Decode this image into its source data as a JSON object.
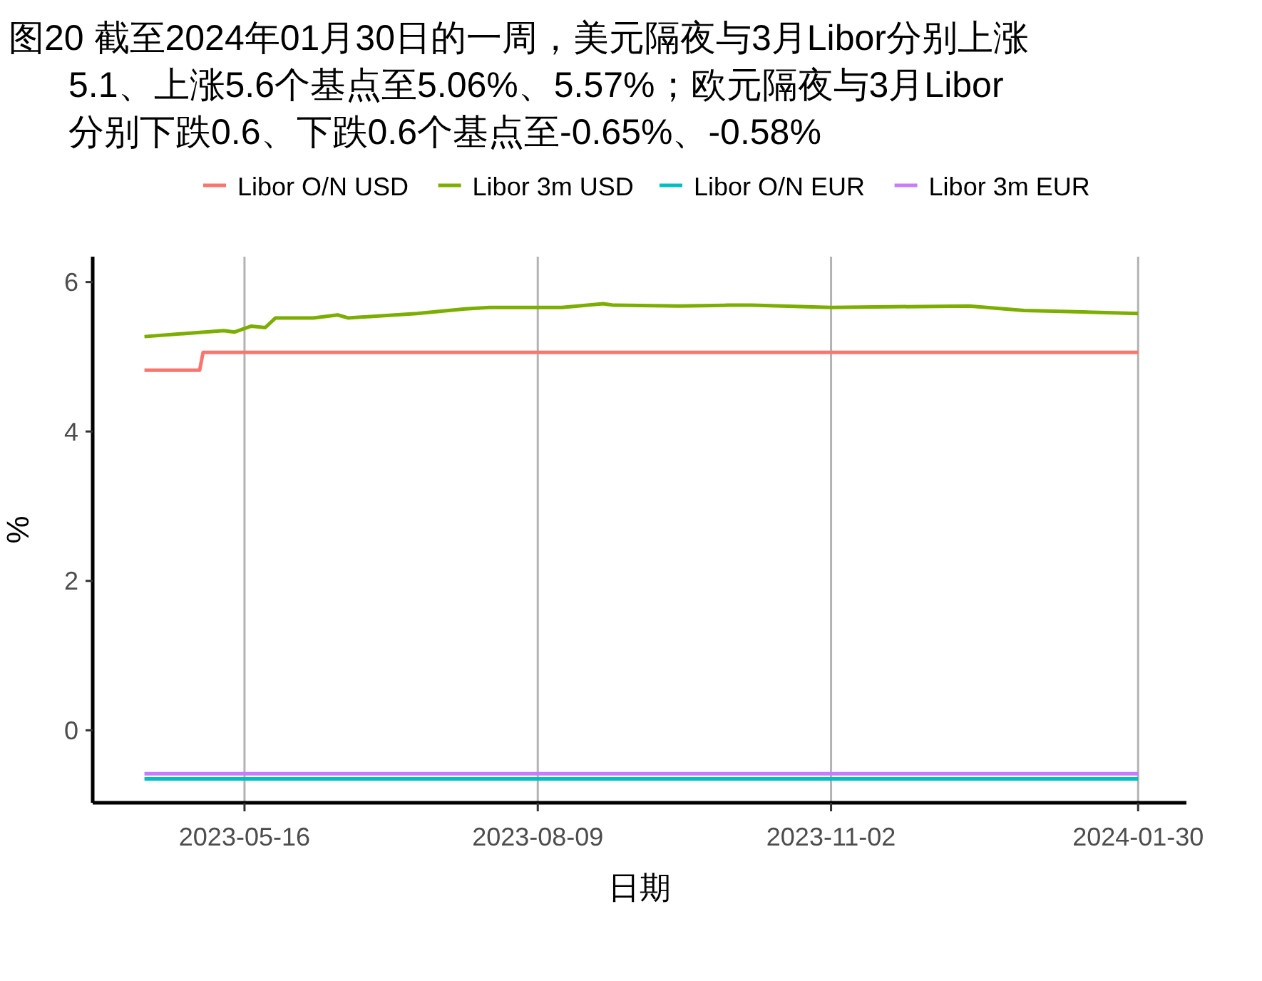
{
  "chart_data": {
    "type": "line",
    "title": "图20  截至2024年01月30日的一周，美元隔夜与3月Libor分别上涨\n5.1、上涨5.6个基点至5.06%、5.57%；欧元隔夜与3月Libor\n分别下跌0.6、下跌0.6个基点至-0.65%、-0.58%",
    "xlabel": "日期",
    "ylabel": "%",
    "xlim": [
      "2023-04-02",
      "2024-02-13"
    ],
    "xticks": [
      {
        "value": "2023-05-16",
        "label": "2023-05-16"
      },
      {
        "value": "2023-08-09",
        "label": "2023-08-09"
      },
      {
        "value": "2023-11-02",
        "label": "2023-11-02"
      },
      {
        "value": "2024-01-30",
        "label": "2024-01-30"
      }
    ],
    "ylim": [
      -0.97,
      6.34
    ],
    "yticks": [
      0,
      2,
      4,
      6
    ],
    "grid": "x",
    "legend": "top",
    "line_style": "solid",
    "marker": "none",
    "series": [
      {
        "name": "Libor O/N USD",
        "color": "#f8766d",
        "x": [
          "2023-04-17",
          "2023-05-03",
          "2023-05-04",
          "2023-06-15",
          "2023-08-16",
          "2023-11-02",
          "2024-01-30"
        ],
        "values": [
          4.82,
          4.82,
          5.06,
          5.06,
          5.06,
          5.06,
          5.06
        ]
      },
      {
        "name": "Libor 3m USD",
        "color": "#7cae00",
        "x": [
          "2023-04-17",
          "2023-05-10",
          "2023-05-13",
          "2023-05-18",
          "2023-05-22",
          "2023-05-25",
          "2023-06-05",
          "2023-06-12",
          "2023-06-15",
          "2023-07-05",
          "2023-07-19",
          "2023-07-26",
          "2023-08-16",
          "2023-08-28",
          "2023-08-31",
          "2023-09-19",
          "2023-10-03",
          "2023-10-10",
          "2023-11-02",
          "2023-12-12",
          "2023-12-28",
          "2024-01-14",
          "2024-01-30"
        ],
        "values": [
          5.27,
          5.35,
          5.33,
          5.41,
          5.39,
          5.52,
          5.52,
          5.56,
          5.52,
          5.58,
          5.64,
          5.66,
          5.66,
          5.71,
          5.69,
          5.68,
          5.69,
          5.69,
          5.66,
          5.68,
          5.62,
          5.6,
          5.58
        ]
      },
      {
        "name": "Libor O/N EUR",
        "color": "#00bfc4",
        "x": [
          "2023-04-17",
          "2024-01-30"
        ],
        "values": [
          -0.65,
          -0.65
        ]
      },
      {
        "name": "Libor 3m EUR",
        "color": "#c77cff",
        "x": [
          "2023-04-17",
          "2024-01-30"
        ],
        "values": [
          -0.58,
          -0.58
        ]
      }
    ]
  }
}
